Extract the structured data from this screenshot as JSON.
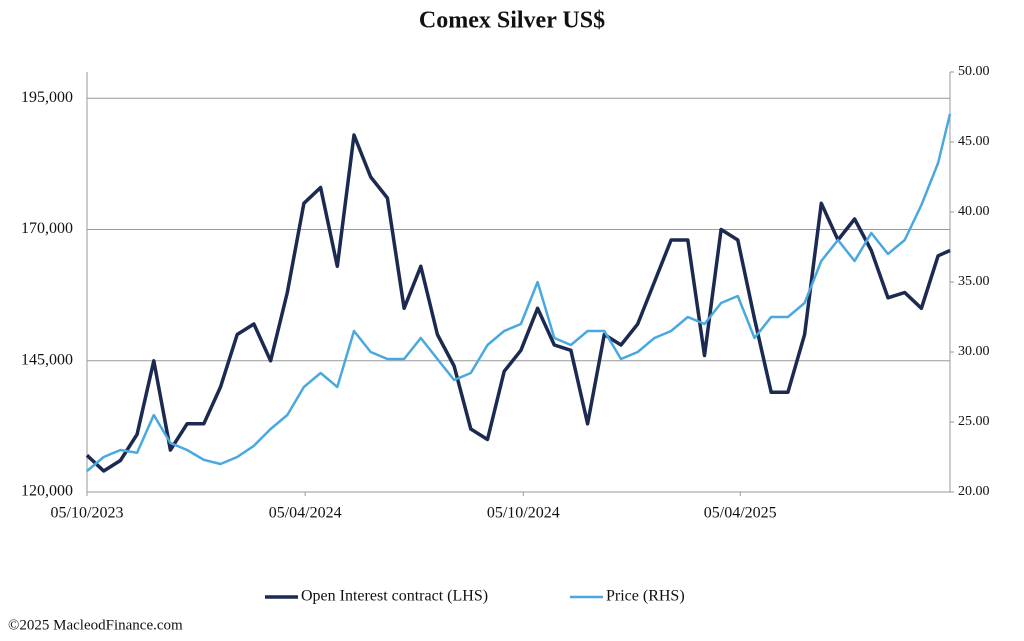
{
  "chart_data": {
    "type": "line",
    "title": "Comex Silver US$",
    "source": "©2025 MacleodFinance.com",
    "x": [
      "2023-10-05",
      "2023-10-19",
      "2023-11-02",
      "2023-11-16",
      "2023-11-30",
      "2023-12-14",
      "2023-12-28",
      "2024-01-11",
      "2024-01-25",
      "2024-02-08",
      "2024-02-22",
      "2024-03-07",
      "2024-03-21",
      "2024-04-04",
      "2024-04-18",
      "2024-05-02",
      "2024-05-16",
      "2024-05-30",
      "2024-06-13",
      "2024-06-27",
      "2024-07-11",
      "2024-07-25",
      "2024-08-08",
      "2024-08-22",
      "2024-09-05",
      "2024-09-19",
      "2024-10-03",
      "2024-10-17",
      "2024-10-31",
      "2024-11-14",
      "2024-11-28",
      "2024-12-12",
      "2024-12-26",
      "2025-01-09",
      "2025-01-23",
      "2025-02-06",
      "2025-02-20",
      "2025-03-06",
      "2025-03-20",
      "2025-04-03",
      "2025-04-17",
      "2025-05-01",
      "2025-05-15",
      "2025-05-29",
      "2025-06-12",
      "2025-06-26",
      "2025-07-10",
      "2025-07-24",
      "2025-08-07",
      "2025-08-21",
      "2025-09-04",
      "2025-09-18",
      "2025-09-28"
    ],
    "series": [
      {
        "name": "Open Interest contract (LHS)",
        "color": "#1c2951",
        "axis": "y",
        "values": [
          127000,
          124000,
          126000,
          131000,
          145000,
          128000,
          133000,
          133000,
          140000,
          150000,
          152000,
          145000,
          158000,
          175000,
          178000,
          163000,
          188000,
          180000,
          176000,
          155000,
          163000,
          150000,
          144000,
          132000,
          130000,
          143000,
          147000,
          155000,
          148000,
          147000,
          133000,
          150000,
          148000,
          152000,
          160000,
          168000,
          168000,
          146000,
          170000,
          168000,
          153000,
          139000,
          139000,
          150000,
          175000,
          168000,
          172000,
          166000,
          157000,
          158000,
          155000,
          165000,
          166000
        ]
      },
      {
        "name": "Price (RHS)",
        "color": "#4aa8e0",
        "axis": "y2",
        "values": [
          21.5,
          22.5,
          23.0,
          22.8,
          25.5,
          23.5,
          23.0,
          22.3,
          22.0,
          22.5,
          23.3,
          24.5,
          25.5,
          27.5,
          28.5,
          27.5,
          31.5,
          30.0,
          29.5,
          29.5,
          31.0,
          29.5,
          28.0,
          28.5,
          30.5,
          31.5,
          32.0,
          35.0,
          31.0,
          30.5,
          31.5,
          31.5,
          29.5,
          30.0,
          31.0,
          31.5,
          32.5,
          32.0,
          33.5,
          34.0,
          31.0,
          32.5,
          32.5,
          33.5,
          36.5,
          38.0,
          36.5,
          38.5,
          37.0,
          38.0,
          40.5,
          43.5,
          47.0
        ]
      }
    ],
    "xlim": [
      "2023-10-05",
      "2025-09-28"
    ],
    "xticks": [
      {
        "value": "2023-10-05",
        "label": "05/10/2023"
      },
      {
        "value": "2024-04-05",
        "label": "05/04/2024"
      },
      {
        "value": "2024-10-05",
        "label": "05/10/2024"
      },
      {
        "value": "2025-04-05",
        "label": "05/04/2025"
      }
    ],
    "ylim": [
      120000,
      200000
    ],
    "yticks": [
      {
        "value": 120000,
        "label": "120,000"
      },
      {
        "value": 145000,
        "label": "145,000"
      },
      {
        "value": 170000,
        "label": "170,000"
      },
      {
        "value": 195000,
        "label": "195,000"
      }
    ],
    "y2lim": [
      20,
      50
    ],
    "y2ticks": [
      {
        "value": 20,
        "label": "20.00"
      },
      {
        "value": 25,
        "label": "25.00"
      },
      {
        "value": 30,
        "label": "30.00"
      },
      {
        "value": 35,
        "label": "35.00"
      },
      {
        "value": 40,
        "label": "40.00"
      },
      {
        "value": 45,
        "label": "45.00"
      },
      {
        "value": 50,
        "label": "50.00"
      }
    ],
    "grid": true,
    "legend": "bottom"
  }
}
